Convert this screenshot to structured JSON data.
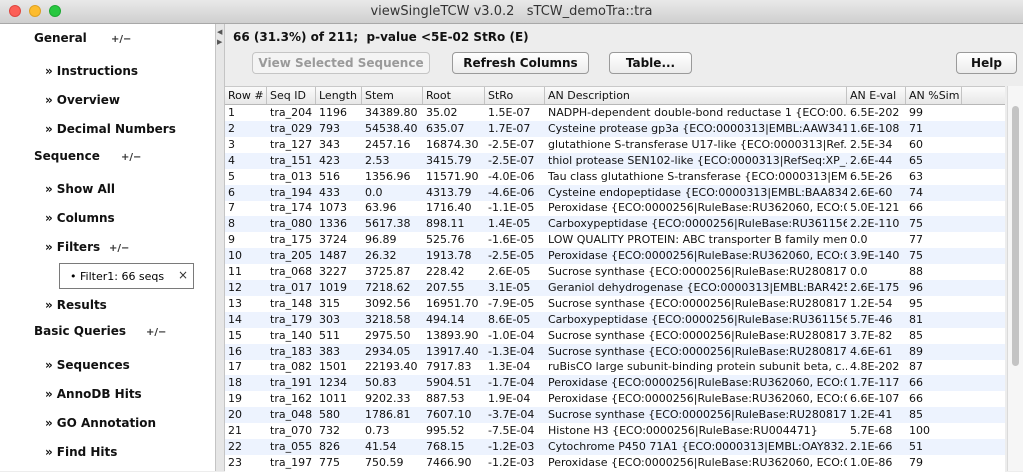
{
  "window": {
    "title": "viewSingleTCW v3.0.2   sTCW_demoTra::tra"
  },
  "sidebar": {
    "sections": [
      {
        "label": "General",
        "items": [
          {
            "label": "Instructions"
          },
          {
            "label": "Overview"
          },
          {
            "label": "Decimal Numbers"
          }
        ]
      },
      {
        "label": "Sequence",
        "items": [
          {
            "label": "Show All"
          },
          {
            "label": "Columns"
          },
          {
            "label": "Filters"
          },
          {
            "label": "Results"
          }
        ]
      },
      {
        "label": "Basic Queries",
        "items": [
          {
            "label": "Sequences"
          },
          {
            "label": "AnnoDB Hits"
          },
          {
            "label": "GO Annotation"
          },
          {
            "label": "Find Hits"
          }
        ]
      }
    ],
    "filter_tag": "Filter1: 66 seqs",
    "toggle_glyph": "+/−",
    "close_glyph": "×",
    "bullet": "•",
    "arrow": "»"
  },
  "main": {
    "summary": "66 (31.3%) of 211;  p-value <5E-02 StRo (E)",
    "buttons": {
      "view": "View Selected Sequence",
      "refresh": "Refresh Columns",
      "table": "Table...",
      "help": "Help"
    }
  },
  "table": {
    "columns": [
      "Row #",
      "Seq ID",
      "Length",
      "Stem",
      "Root",
      "StRo",
      "AN Description",
      "AN E-val",
      "AN %Sim"
    ],
    "rows": [
      [
        "1",
        "tra_204",
        "1196",
        "34389.80",
        "35.02",
        "1.5E-07",
        "NADPH-dependent double-bond reductase 1 {ECO:00...",
        "6.5E-202",
        "99"
      ],
      [
        "2",
        "tra_029",
        "793",
        "54538.40",
        "635.07",
        "1.7E-07",
        "Cysteine protease gp3a {ECO:0000313|EMBL:AAW341...",
        "1.6E-108",
        "71"
      ],
      [
        "3",
        "tra_127",
        "343",
        "2457.16",
        "16874.30",
        "-2.5E-07",
        "glutathione S-transferase U17-like {ECO:0000313|Ref...",
        "2.5E-34",
        "60"
      ],
      [
        "4",
        "tra_151",
        "423",
        "2.53",
        "3415.79",
        "-2.5E-07",
        "thiol protease SEN102-like {ECO:0000313|RefSeq:XP_...",
        "2.6E-44",
        "65"
      ],
      [
        "5",
        "tra_013",
        "516",
        "1356.96",
        "11571.90",
        "-4.0E-06",
        "Tau class glutathione S-transferase {ECO:0000313|EM...",
        "6.5E-26",
        "63"
      ],
      [
        "6",
        "tra_194",
        "433",
        "0.0",
        "4313.79",
        "-4.6E-06",
        "Cysteine endopeptidase {ECO:0000313|EMBL:BAA834...",
        "2.6E-60",
        "74"
      ],
      [
        "7",
        "tra_174",
        "1073",
        "63.96",
        "1716.40",
        "-1.1E-05",
        "Peroxidase {ECO:0000256|RuleBase:RU362060, ECO:0...",
        "5.0E-121",
        "66"
      ],
      [
        "8",
        "tra_080",
        "1336",
        "5617.38",
        "898.11",
        "1.4E-05",
        "Carboxypeptidase {ECO:0000256|RuleBase:RU361156}",
        "2.2E-110",
        "75"
      ],
      [
        "9",
        "tra_175",
        "3724",
        "96.89",
        "525.76",
        "-1.6E-05",
        "LOW QUALITY PROTEIN: ABC transporter B family mem...",
        "0.0",
        "77"
      ],
      [
        "10",
        "tra_205",
        "1487",
        "26.32",
        "1913.78",
        "-2.5E-05",
        "Peroxidase {ECO:0000256|RuleBase:RU362060, ECO:0...",
        "3.9E-140",
        "75"
      ],
      [
        "11",
        "tra_068",
        "3227",
        "3725.87",
        "228.42",
        "2.6E-05",
        "Sucrose synthase {ECO:0000256|RuleBase:RU280817}",
        "0.0",
        "88"
      ],
      [
        "12",
        "tra_017",
        "1019",
        "7218.62",
        "207.55",
        "3.1E-05",
        "Geraniol dehydrogenase {ECO:0000313|EMBL:BAR425...",
        "2.6E-175",
        "96"
      ],
      [
        "13",
        "tra_148",
        "315",
        "3092.56",
        "16951.70",
        "-7.9E-05",
        "Sucrose synthase {ECO:0000256|RuleBase:RU280817}",
        "1.2E-54",
        "95"
      ],
      [
        "14",
        "tra_179",
        "303",
        "3218.58",
        "494.14",
        "8.6E-05",
        "Carboxypeptidase {ECO:0000256|RuleBase:RU361156}",
        "5.7E-46",
        "81"
      ],
      [
        "15",
        "tra_140",
        "511",
        "2975.50",
        "13893.90",
        "-1.0E-04",
        "Sucrose synthase {ECO:0000256|RuleBase:RU280817}",
        "3.7E-82",
        "85"
      ],
      [
        "16",
        "tra_183",
        "383",
        "2934.05",
        "13917.40",
        "-1.3E-04",
        "Sucrose synthase {ECO:0000256|RuleBase:RU280817}",
        "4.6E-61",
        "89"
      ],
      [
        "17",
        "tra_082",
        "1501",
        "22193.40",
        "7917.83",
        "1.3E-04",
        "ruBisCO large subunit-binding protein subunit beta, c...",
        "4.8E-202",
        "87"
      ],
      [
        "18",
        "tra_191",
        "1234",
        "50.83",
        "5904.51",
        "-1.7E-04",
        "Peroxidase {ECO:0000256|RuleBase:RU362060, ECO:0...",
        "1.7E-117",
        "66"
      ],
      [
        "19",
        "tra_162",
        "1011",
        "9202.33",
        "887.53",
        "1.9E-04",
        "Peroxidase {ECO:0000256|RuleBase:RU362060, ECO:0...",
        "6.6E-107",
        "66"
      ],
      [
        "20",
        "tra_048",
        "580",
        "1786.81",
        "7607.10",
        "-3.7E-04",
        "Sucrose synthase {ECO:0000256|RuleBase:RU280817}",
        "1.2E-41",
        "85"
      ],
      [
        "21",
        "tra_070",
        "732",
        "0.73",
        "995.52",
        "-7.5E-04",
        "Histone H3 {ECO:0000256|RuleBase:RU004471}",
        "5.7E-68",
        "100"
      ],
      [
        "22",
        "tra_055",
        "826",
        "41.54",
        "768.15",
        "-1.2E-03",
        "Cytochrome P450 71A1 {ECO:0000313|EMBL:OAY832...",
        "2.1E-66",
        "51"
      ],
      [
        "23",
        "tra_197",
        "775",
        "750.59",
        "7466.90",
        "-1.2E-03",
        "Peroxidase {ECO:0000256|RuleBase:RU362060, ECO:0...",
        "1.0E-86",
        "79"
      ]
    ]
  }
}
